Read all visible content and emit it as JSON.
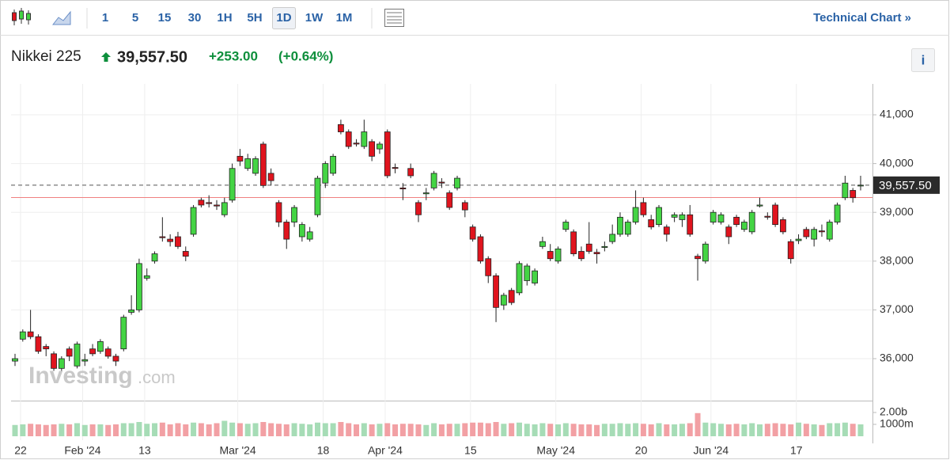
{
  "toolbar": {
    "intervals": [
      "1",
      "5",
      "15",
      "30",
      "1H",
      "5H",
      "1D",
      "1W",
      "1M"
    ],
    "selected": "1D",
    "link": "Technical Chart »"
  },
  "header": {
    "name": "Nikkei 225",
    "price": "39,557.50",
    "change": "+253.00",
    "change_pct": "(+0.64%)",
    "info": "i"
  },
  "watermark": {
    "brand": "Investing",
    "suffix": ".com"
  },
  "chart_data": {
    "type": "candlestick",
    "categories": [
      "22",
      null,
      null,
      null,
      null,
      null,
      null,
      null,
      "Feb '24",
      null,
      null,
      null,
      null,
      null,
      null,
      null,
      "13",
      null,
      null,
      null,
      null,
      null,
      null,
      null,
      null,
      null,
      null,
      null,
      "Mar '24",
      null,
      null,
      null,
      null,
      null,
      null,
      null,
      null,
      null,
      null,
      "18",
      null,
      null,
      null,
      null,
      null,
      null,
      null,
      "Apr '24",
      null,
      null,
      null,
      null,
      null,
      null,
      null,
      null,
      null,
      null,
      "15",
      null,
      null,
      null,
      null,
      null,
      null,
      null,
      null,
      null,
      null,
      "May '24",
      null,
      null,
      null,
      null,
      null,
      null,
      null,
      null,
      null,
      null,
      "20",
      null,
      null,
      null,
      null,
      null,
      null,
      null,
      null,
      "Jun '24",
      null,
      null,
      null,
      null,
      null,
      null,
      null,
      null,
      null,
      null,
      "17",
      null,
      null,
      null,
      null,
      null,
      null,
      null,
      null,
      null
    ],
    "open": [
      35950,
      36400,
      36550,
      36450,
      36250,
      36100,
      35800,
      36200,
      35850,
      35950,
      36200,
      36150,
      36200,
      36050,
      36200,
      36950,
      37000,
      37650,
      38000,
      38500,
      38450,
      38500,
      38200,
      38550,
      39250,
      39200,
      39150,
      38950,
      39250,
      40150,
      39900,
      39800,
      40400,
      39800,
      39200,
      38800,
      38800,
      38500,
      38450,
      38950,
      39600,
      39800,
      40800,
      40650,
      40420,
      40350,
      40450,
      40300,
      40650,
      39920,
      39500,
      39900,
      39200,
      39380,
      39500,
      39620,
      39400,
      39500,
      39200,
      38700,
      38500,
      38050,
      37700,
      37100,
      37400,
      37350,
      37600,
      37550,
      38300,
      38200,
      38000,
      38650,
      38600,
      38200,
      38350,
      38180,
      38280,
      38400,
      38550,
      38550,
      38800,
      39200,
      38850,
      38750,
      38700,
      38900,
      38850,
      38950,
      38100,
      38000,
      38800,
      38800,
      38700,
      38900,
      38650,
      38600,
      39130,
      38920,
      39150,
      38850,
      38400,
      38420,
      38650,
      38450,
      38620,
      38450,
      38800,
      39300,
      39450,
      39540
    ],
    "high": [
      36100,
      36600,
      37000,
      36500,
      36300,
      36150,
      36050,
      36250,
      36350,
      36100,
      36300,
      36400,
      36250,
      36100,
      36900,
      37300,
      38050,
      37850,
      38200,
      38900,
      38550,
      38600,
      38300,
      39150,
      39300,
      39350,
      39250,
      39300,
      40000,
      40300,
      40200,
      40150,
      40450,
      39900,
      39250,
      38850,
      39150,
      38800,
      38700,
      39750,
      40050,
      40200,
      40900,
      40700,
      40500,
      40900,
      40500,
      40450,
      40700,
      40000,
      39600,
      40000,
      39250,
      39500,
      39850,
      39700,
      39450,
      39750,
      39250,
      38750,
      38550,
      38100,
      37750,
      37350,
      37450,
      38000,
      37950,
      37850,
      38500,
      38350,
      38300,
      38850,
      38650,
      38300,
      38800,
      38250,
      38400,
      38750,
      39000,
      38850,
      39450,
      39300,
      38950,
      39150,
      38750,
      39000,
      39000,
      39150,
      38150,
      38400,
      39050,
      39000,
      38750,
      38950,
      38850,
      39050,
      39300,
      39000,
      39200,
      38900,
      38450,
      38550,
      38700,
      38700,
      38750,
      38850,
      39200,
      39750,
      39500,
      39750
    ],
    "low": [
      35850,
      36350,
      36400,
      36100,
      36050,
      35750,
      35750,
      35950,
      35800,
      35850,
      36050,
      36100,
      36000,
      35850,
      36150,
      36900,
      36950,
      37600,
      37950,
      38400,
      38300,
      38250,
      38000,
      38500,
      39100,
      39100,
      39050,
      38900,
      39200,
      39950,
      39850,
      39750,
      39500,
      39550,
      38700,
      38250,
      38700,
      38400,
      38400,
      38900,
      39500,
      39750,
      40600,
      40300,
      40350,
      40300,
      40050,
      40200,
      39700,
      39800,
      39250,
      39700,
      38800,
      39250,
      39450,
      39500,
      39050,
      39450,
      38900,
      38400,
      37950,
      37550,
      36750,
      37000,
      37100,
      37300,
      37500,
      37500,
      38250,
      38000,
      37950,
      38600,
      38100,
      38000,
      38150,
      37950,
      38200,
      38350,
      38500,
      38500,
      38750,
      38900,
      38650,
      38700,
      38400,
      38800,
      38700,
      38500,
      37600,
      37950,
      38750,
      38750,
      38350,
      38700,
      38600,
      38550,
      39100,
      38850,
      38700,
      38550,
      37950,
      38350,
      38450,
      38300,
      38500,
      38400,
      38750,
      39250,
      39200,
      39450
    ],
    "close": [
      36000,
      36550,
      36450,
      36150,
      36200,
      35800,
      36000,
      36050,
      36300,
      35980,
      36100,
      36350,
      36050,
      35950,
      36850,
      37000,
      37950,
      37700,
      38150,
      38480,
      38400,
      38300,
      38100,
      39100,
      39150,
      39180,
      39130,
      39200,
      39900,
      40050,
      40100,
      40100,
      39550,
      39650,
      38800,
      38450,
      39100,
      38750,
      38600,
      39700,
      40000,
      40150,
      40650,
      40350,
      40400,
      40650,
      40150,
      40400,
      39750,
      39900,
      39480,
      39750,
      38950,
      39400,
      39800,
      39600,
      39100,
      39700,
      39050,
      38450,
      38000,
      37700,
      37050,
      37300,
      37150,
      37950,
      37900,
      37800,
      38400,
      38050,
      38250,
      38800,
      38150,
      38050,
      38200,
      38150,
      38300,
      38550,
      38900,
      38800,
      39100,
      38950,
      38700,
      39100,
      38550,
      38950,
      38950,
      38550,
      38050,
      38350,
      39000,
      38950,
      38500,
      38750,
      38800,
      39000,
      39150,
      38900,
      38750,
      38600,
      38050,
      38450,
      38500,
      38650,
      38600,
      38800,
      39150,
      39600,
      39300,
      39557.5
    ],
    "volume": [
      950,
      1000,
      1050,
      1000,
      950,
      1000,
      1050,
      1000,
      1100,
      950,
      1000,
      1000,
      950,
      1000,
      1100,
      1100,
      1200,
      1050,
      1100,
      1150,
      1000,
      1100,
      1000,
      1150,
      1100,
      1000,
      1100,
      1300,
      1150,
      1100,
      1050,
      1100,
      1200,
      1100,
      1050,
      1000,
      1100,
      1050,
      1000,
      1150,
      1100,
      1100,
      1200,
      1100,
      1000,
      1100,
      1000,
      1050,
      1100,
      1000,
      1050,
      1050,
      1000,
      950,
      1100,
      1000,
      1050,
      1050,
      1100,
      1150,
      1150,
      1100,
      1200,
      1050,
      1100,
      1150,
      1050,
      1000,
      1100,
      1050,
      1000,
      1100,
      1050,
      1000,
      1000,
      950,
      1050,
      1050,
      1100,
      1050,
      1100,
      1050,
      1000,
      1100,
      1000,
      1000,
      1050,
      1100,
      1950,
      1150,
      1100,
      1050,
      1000,
      1050,
      1000,
      1100,
      1000,
      1050,
      1100,
      1050,
      1000,
      1150,
      1050,
      1000,
      950,
      1100,
      1100,
      1150,
      1050,
      1000
    ],
    "ylim": [
      35156,
      41633
    ],
    "yticks": [
      {
        "value": 36000,
        "label": "36,000"
      },
      {
        "value": 37000,
        "label": "37,000"
      },
      {
        "value": 38000,
        "label": "38,000"
      },
      {
        "value": 39000,
        "label": "39,000"
      },
      {
        "value": 40000,
        "label": "40,000"
      },
      {
        "value": 41000,
        "label": "41,000"
      }
    ],
    "volume_lim": [
      0,
      2867
    ],
    "volume_ticks": [
      {
        "value": 2000,
        "label": "2.00b"
      },
      {
        "value": 1000,
        "label": "1000m"
      }
    ],
    "last_price": {
      "value": 39557.5,
      "label": "39,557.50"
    },
    "prev_close": 39304.5,
    "grid": true,
    "up_color": "#44d444",
    "down_color": "#e0141e",
    "volume_up_color": "#a6dcb6",
    "volume_down_color": "#f2a0a4"
  }
}
